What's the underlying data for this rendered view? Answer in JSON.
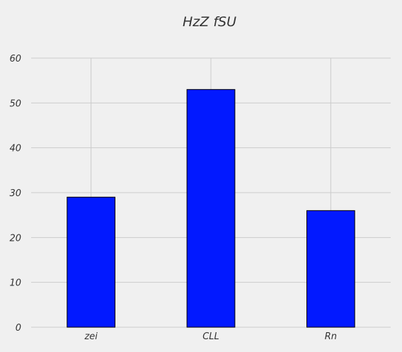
{
  "chart_data": {
    "type": "bar",
    "title": "HzZ fSU",
    "xlabel": "",
    "ylabel": "",
    "categories": [
      "zei",
      "CLL",
      "Rn"
    ],
    "values": [
      29,
      53,
      26
    ],
    "ylim": [
      0,
      60
    ],
    "yticks": [
      0,
      10,
      20,
      30,
      40,
      50,
      60
    ],
    "grid": true,
    "colors": {
      "bar": "#0219ff",
      "bar_edge": "#000000",
      "grid": "#cbcbcb",
      "background": "#f0f0f0"
    }
  }
}
